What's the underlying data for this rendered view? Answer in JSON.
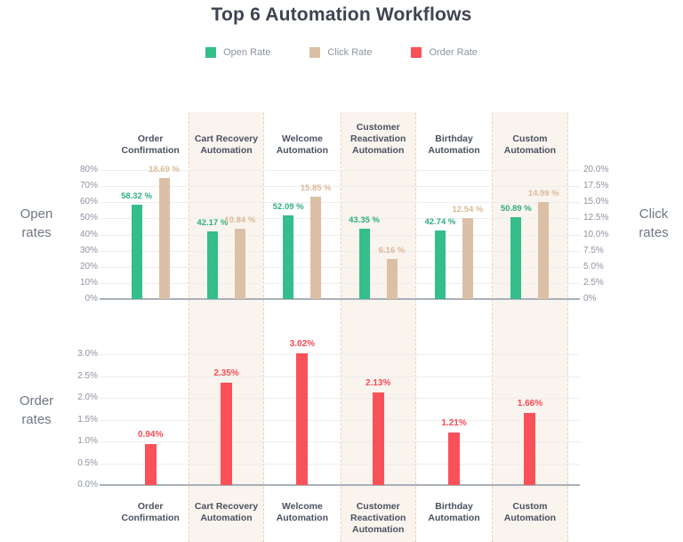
{
  "title": "Top 6 Automation Workflows",
  "legend": {
    "items": [
      {
        "label": "Open Rate",
        "color": "#35bd8b"
      },
      {
        "label": "Click Rate",
        "color": "#dcc0a5"
      },
      {
        "label": "Order Rate",
        "color": "#f95159"
      }
    ]
  },
  "categories": [
    "Order Confirmation",
    "Cart Recovery Automation",
    "Welcome Automation",
    "Customer Reactivation Automation",
    "Birthday Automation",
    "Custom Automation"
  ],
  "chart_data": [
    {
      "type": "bar",
      "panel": "top",
      "categories": [
        "Order Confirmation",
        "Cart Recovery Automation",
        "Welcome Automation",
        "Customer Reactivation Automation",
        "Birthday Automation",
        "Custom Automation"
      ],
      "series": [
        {
          "name": "Open Rate",
          "axis": "left",
          "color": "#35bd8b",
          "label_color": "#2fae7f",
          "values": [
            58.32,
            42.17,
            52.09,
            43.35,
            42.74,
            50.89
          ],
          "value_labels": [
            "58.32 %",
            "42.17 %",
            "52.09 %",
            "43.35 %",
            "42.74 %",
            "50.89 %"
          ]
        },
        {
          "name": "Click Rate",
          "axis": "right",
          "color": "#dcc0a5",
          "label_color": "#dcb998",
          "values": [
            18.69,
            10.84,
            15.85,
            6.16,
            12.54,
            14.99
          ],
          "value_labels": [
            "18.69 %",
            "10.84 %",
            "15.85 %",
            "6.16 %",
            "12.54 %",
            "14.99 %"
          ]
        }
      ],
      "left_axis": {
        "title": "Open rates",
        "max": 80,
        "ticks": [
          "80%",
          "70%",
          "60%",
          "50%",
          "40%",
          "30%",
          "20%",
          "10%",
          "0%"
        ]
      },
      "right_axis": {
        "title": "Click rates",
        "max": 20,
        "ticks": [
          "20.0%",
          "17.5%",
          "15.0%",
          "12.5%",
          "10.0%",
          "7.5%",
          "5.0%",
          "2.5%",
          "0%"
        ]
      },
      "grid": true,
      "legend_position": "top"
    },
    {
      "type": "bar",
      "panel": "bottom",
      "categories": [
        "Order Confirmation",
        "Cart Recovery Automation",
        "Welcome Automation",
        "Customer Reactivation Automation",
        "Birthday Automation",
        "Custom Automation"
      ],
      "series": [
        {
          "name": "Order Rate",
          "axis": "left",
          "color": "#f95159",
          "label_color": "#f94b54",
          "values": [
            0.94,
            2.35,
            3.02,
            2.13,
            1.21,
            1.66
          ],
          "value_labels": [
            "0.94%",
            "2.35%",
            "3.02%",
            "2.13%",
            "1.21%",
            "1.66%"
          ]
        }
      ],
      "left_axis": {
        "title": "Order rates",
        "max": 3.0,
        "ticks": [
          "3.0%",
          "2.5%",
          "2.0%",
          "1.5%",
          "1.0%",
          "0.5%",
          "0.0%"
        ]
      },
      "grid": true
    }
  ],
  "colors": {
    "title_text": "#3e4450",
    "category_text": "#4a5160",
    "tick_text": "#8d939e",
    "axis_title_text": "#6f7783",
    "grid": "#ededed",
    "baseline": "#a9b0b8",
    "stripe_bg": "#faf4ee",
    "stripe_border": "#f0d0b2"
  }
}
